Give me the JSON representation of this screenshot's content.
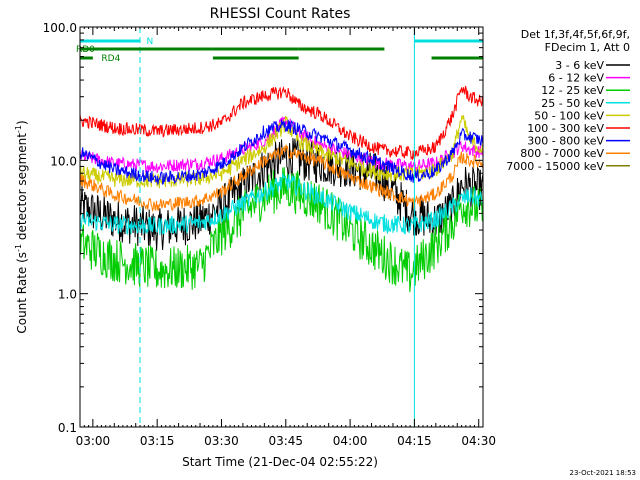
{
  "chart_data": {
    "type": "line",
    "title": "RHESSI Count Rates",
    "xlabel": "Start Time (21-Dec-04 02:55:22)",
    "ylabel_main": "Count Rate (s",
    "ylabel_sup1": "-1",
    "ylabel_mid": " detector segment",
    "ylabel_sup2": "-1",
    "ylabel_end": ")",
    "y_scale": "log",
    "ylim": [
      0.1,
      100.0
    ],
    "xlim_minutes": [
      2,
      96
    ],
    "y_ticks": [
      {
        "label": "100.0",
        "value": 100
      },
      {
        "label": "10.0",
        "value": 10
      },
      {
        "label": "1.0",
        "value": 1
      },
      {
        "label": "0.1",
        "value": 0.1
      }
    ],
    "x_ticks": [
      {
        "label": "03:00",
        "minutes": 5
      },
      {
        "label": "03:15",
        "minutes": 20
      },
      {
        "label": "03:30",
        "minutes": 35
      },
      {
        "label": "03:45",
        "minutes": 50
      },
      {
        "label": "04:00",
        "minutes": 65
      },
      {
        "label": "04:15",
        "minutes": 80
      },
      {
        "label": "04:30",
        "minutes": 95
      }
    ],
    "legend_header": [
      "Det 1f,3f,4f,5f,6f,9f,",
      "FDecim 1, Att 0"
    ],
    "series": [
      {
        "name": "3 - 6 keV",
        "color": "#000000",
        "noise": 0.16,
        "points": [
          [
            2,
            4.5
          ],
          [
            10,
            3.6
          ],
          [
            20,
            3.0
          ],
          [
            30,
            3.5
          ],
          [
            35,
            4.5
          ],
          [
            45,
            8.8
          ],
          [
            50,
            10.5
          ],
          [
            58,
            9.5
          ],
          [
            65,
            8.8
          ],
          [
            72,
            7.8
          ],
          [
            79,
            4.0
          ],
          [
            85,
            3.5
          ],
          [
            89,
            4.5
          ],
          [
            91,
            6.6
          ],
          [
            93,
            6.3
          ],
          [
            96,
            6.0
          ]
        ]
      },
      {
        "name": "6 - 12 keV",
        "color": "#ff00ff",
        "noise": 0.05,
        "points": [
          [
            2,
            10.8
          ],
          [
            10,
            9.5
          ],
          [
            20,
            9.0
          ],
          [
            30,
            9.5
          ],
          [
            35,
            10.3
          ],
          [
            45,
            14.0
          ],
          [
            50,
            20.0
          ],
          [
            53,
            16.0
          ],
          [
            58,
            13.0
          ],
          [
            65,
            11.0
          ],
          [
            72,
            9.5
          ],
          [
            80,
            9.0
          ],
          [
            85,
            9.5
          ],
          [
            89,
            11.5
          ],
          [
            91,
            13.0
          ],
          [
            93,
            12.0
          ],
          [
            96,
            11.5
          ]
        ]
      },
      {
        "name": "12 - 25 keV",
        "color": "#00cc00",
        "noise": 0.17,
        "points": [
          [
            2,
            2.4
          ],
          [
            10,
            1.8
          ],
          [
            20,
            1.5
          ],
          [
            30,
            1.6
          ],
          [
            35,
            2.8
          ],
          [
            45,
            5.5
          ],
          [
            50,
            6.3
          ],
          [
            58,
            4.8
          ],
          [
            65,
            3.0
          ],
          [
            72,
            2.0
          ],
          [
            79,
            1.4
          ],
          [
            85,
            2.3
          ],
          [
            89,
            3.5
          ],
          [
            91,
            4.7
          ],
          [
            93,
            4.6
          ],
          [
            96,
            4.2
          ]
        ]
      },
      {
        "name": "25 - 50 keV",
        "color": "#00e0e0",
        "noise": 0.07,
        "points": [
          [
            2,
            3.6
          ],
          [
            10,
            3.3
          ],
          [
            20,
            3.2
          ],
          [
            30,
            3.4
          ],
          [
            35,
            3.9
          ],
          [
            45,
            5.8
          ],
          [
            50,
            7.0
          ],
          [
            58,
            5.3
          ],
          [
            65,
            4.1
          ],
          [
            72,
            3.4
          ],
          [
            79,
            3.2
          ],
          [
            85,
            3.6
          ],
          [
            89,
            4.5
          ],
          [
            91,
            5.1
          ],
          [
            93,
            5.4
          ],
          [
            96,
            5.0
          ]
        ]
      },
      {
        "name": "50 - 100 keV",
        "color": "#cccc00",
        "noise": 0.06,
        "points": [
          [
            2,
            8.0
          ],
          [
            10,
            7.2
          ],
          [
            20,
            7.0
          ],
          [
            30,
            7.3
          ],
          [
            35,
            8.0
          ],
          [
            45,
            12.5
          ],
          [
            50,
            19.0
          ],
          [
            53,
            14.0
          ],
          [
            58,
            11.5
          ],
          [
            65,
            9.5
          ],
          [
            72,
            8.0
          ],
          [
            80,
            7.8
          ],
          [
            85,
            8.5
          ],
          [
            89,
            11.5
          ],
          [
            91,
            21.0
          ],
          [
            93,
            14.0
          ],
          [
            96,
            12.0
          ]
        ]
      },
      {
        "name": "100 - 300 keV",
        "color": "#ff0000",
        "noise": 0.05,
        "points": [
          [
            2,
            20.0
          ],
          [
            10,
            17.5
          ],
          [
            20,
            16.5
          ],
          [
            30,
            17.5
          ],
          [
            35,
            19.0
          ],
          [
            40,
            27.0
          ],
          [
            45,
            30.5
          ],
          [
            50,
            33.0
          ],
          [
            53,
            26.0
          ],
          [
            58,
            22.0
          ],
          [
            65,
            15.0
          ],
          [
            72,
            12.0
          ],
          [
            80,
            11.3
          ],
          [
            85,
            12.5
          ],
          [
            89,
            22.0
          ],
          [
            91,
            35.0
          ],
          [
            93,
            30.0
          ],
          [
            96,
            27.0
          ]
        ]
      },
      {
        "name": "300 - 800 keV",
        "color": "#0000ff",
        "noise": 0.05,
        "points": [
          [
            2,
            11.5
          ],
          [
            10,
            8.5
          ],
          [
            20,
            7.3
          ],
          [
            30,
            7.8
          ],
          [
            35,
            9.3
          ],
          [
            45,
            16.5
          ],
          [
            50,
            18.5
          ],
          [
            58,
            15.0
          ],
          [
            65,
            12.0
          ],
          [
            72,
            9.5
          ],
          [
            80,
            7.5
          ],
          [
            85,
            8.3
          ],
          [
            89,
            11.5
          ],
          [
            91,
            15.5
          ],
          [
            93,
            15.0
          ],
          [
            96,
            14.0
          ]
        ]
      },
      {
        "name": "800 - 7000 keV",
        "color": "#ff8000",
        "noise": 0.05,
        "points": [
          [
            2,
            7.2
          ],
          [
            10,
            5.5
          ],
          [
            20,
            4.6
          ],
          [
            30,
            5.0
          ],
          [
            35,
            5.8
          ],
          [
            45,
            10.0
          ],
          [
            50,
            11.8
          ],
          [
            58,
            9.8
          ],
          [
            65,
            7.5
          ],
          [
            72,
            6.0
          ],
          [
            80,
            4.8
          ],
          [
            85,
            5.6
          ],
          [
            89,
            7.8
          ],
          [
            91,
            10.5
          ],
          [
            93,
            10.0
          ],
          [
            96,
            9.5
          ]
        ]
      },
      {
        "name": "7000 - 15000 keV",
        "color": "#808000",
        "noise": 0.0,
        "points": []
      }
    ],
    "attenuator_bars": [
      {
        "label": "N",
        "color": "#00e0e0",
        "segments": [
          [
            2,
            16
          ],
          [
            80,
            96
          ]
        ]
      }
    ],
    "decimation_bars": [
      {
        "label": "RD0",
        "color": "#008000",
        "segments": [
          [
            2,
            33
          ],
          [
            33,
            53
          ],
          [
            53,
            73
          ]
        ]
      },
      {
        "label": "RD4",
        "color": "#008000",
        "segments": [
          [
            2,
            5
          ],
          [
            33,
            53
          ],
          [
            84,
            96
          ]
        ]
      }
    ],
    "vlines_solid": [
      2,
      80
    ],
    "vlines_dashed": [
      16,
      96
    ],
    "footer_timestamp": "23-Oct-2021 18:53"
  }
}
